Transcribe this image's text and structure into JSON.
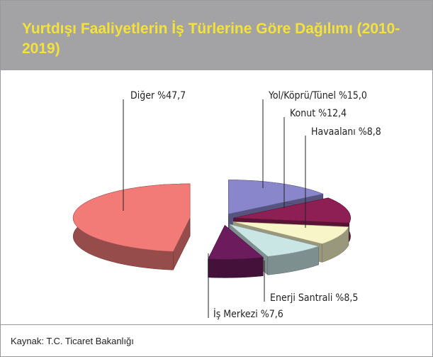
{
  "chart_data": {
    "type": "pie",
    "title": "Yurtdışı Faaliyetlerin İş Türlerine Göre Dağılımı (2010-2019)",
    "categories": [
      "Diğer",
      "Yol/Köprü/Tünel",
      "Konut",
      "Havaalanı",
      "Enerji Santrali",
      "İş Merkezi"
    ],
    "values": [
      47.7,
      15.0,
      12.4,
      8.8,
      8.5,
      7.6
    ],
    "value_labels": [
      "%47,7",
      "%15,0",
      "%12,4",
      "%8,8",
      "%8,5",
      "%7,6"
    ],
    "colors": [
      "#f27b78",
      "#8a86cc",
      "#8e1f55",
      "#f8f5c8",
      "#c9e6e5",
      "#6c1b5d"
    ],
    "source": "Kaynak: T.C. Ticaret Bakanlığı"
  }
}
